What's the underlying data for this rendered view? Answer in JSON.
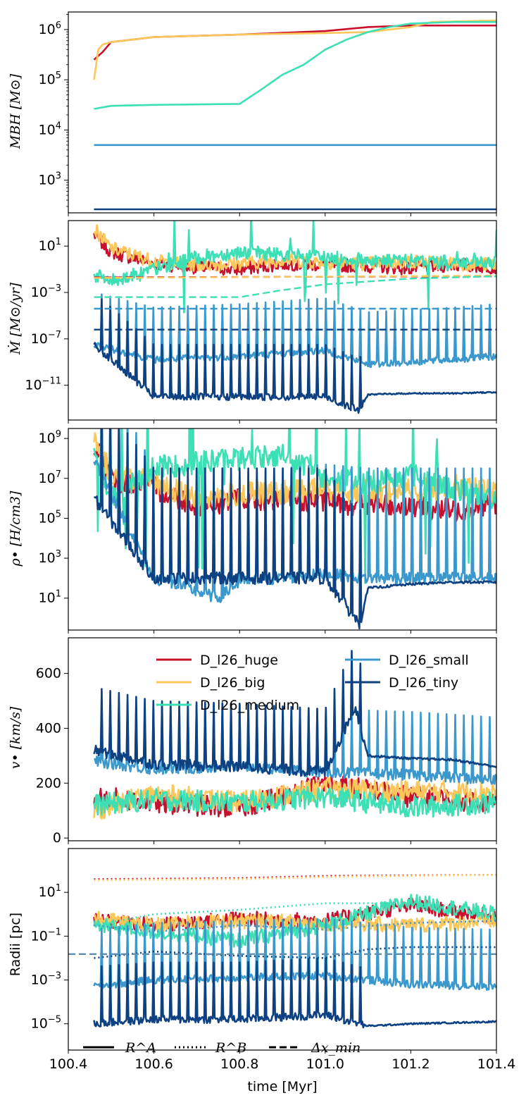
{
  "colors": {
    "huge": "#c8102e",
    "big": "#fcc75a",
    "medium": "#3ddfb4",
    "small": "#3a98cc",
    "tiny": "#0d4182",
    "dxmin_line": "#5f8eb0"
  },
  "chart_data": {
    "type": "line",
    "layout": "5 vertically stacked panels sharing x-axis",
    "xlabel": "time [Myr]",
    "xlim": [
      100.4,
      101.4
    ],
    "xticks": [
      "100.4",
      "100.6",
      "100.8",
      "101.0",
      "101.2",
      "101.4"
    ],
    "x_tick_values": [
      100.4,
      100.6,
      100.8,
      101.0,
      101.2,
      101.4
    ],
    "series_names": [
      "D_l26_huge",
      "D_l26_big",
      "D_l26_medium",
      "D_l26_small",
      "D_l26_tiny"
    ],
    "panels": [
      {
        "ylabel": "M_BH [M_⊙]",
        "ylabel_display": "MBH [M⊙]",
        "yscale": "log",
        "ylim_log10": [
          2.35,
          6.35
        ],
        "yticks": [
          "10^3",
          "10^4",
          "10^5",
          "10^6"
        ],
        "series": [
          {
            "name": "D_l26_huge",
            "style": "solid",
            "x": [
              100.46,
              100.48,
              100.5,
              100.55,
              100.6,
              100.8,
              101.0,
              101.1,
              101.2,
              101.3,
              101.4
            ],
            "log10_y": [
              5.4,
              5.55,
              5.75,
              5.8,
              5.85,
              5.9,
              5.97,
              6.05,
              6.08,
              6.08,
              6.08
            ]
          },
          {
            "name": "D_l26_big",
            "style": "solid",
            "x": [
              100.46,
              100.47,
              100.48,
              100.5,
              100.55,
              100.6,
              100.8,
              101.0,
              101.1,
              101.2,
              101.25,
              101.4
            ],
            "log10_y": [
              5.0,
              5.6,
              5.7,
              5.75,
              5.8,
              5.85,
              5.9,
              5.93,
              5.95,
              6.05,
              6.15,
              6.18
            ]
          },
          {
            "name": "D_l26_medium",
            "style": "solid",
            "x": [
              100.46,
              100.5,
              100.6,
              100.8,
              100.85,
              100.9,
              100.95,
              101.0,
              101.05,
              101.1,
              101.15,
              101.2,
              101.3,
              101.4
            ],
            "log10_y": [
              4.42,
              4.48,
              4.5,
              4.52,
              4.8,
              5.1,
              5.3,
              5.6,
              5.8,
              5.95,
              6.05,
              6.12,
              6.15,
              6.15
            ]
          },
          {
            "name": "D_l26_small",
            "style": "solid",
            "x": [
              100.46,
              101.4
            ],
            "log10_y": [
              3.7,
              3.7
            ]
          },
          {
            "name": "D_l26_tiny",
            "style": "solid",
            "x": [
              100.46,
              101.4
            ],
            "log10_y": [
              2.42,
              2.42
            ]
          }
        ]
      },
      {
        "ylabel": "Ṁ [M_⊙/yr]",
        "ylabel_display": "Ṁ [M⊙/yr]",
        "yscale": "log",
        "ylim_log10": [
          -14,
          3.2
        ],
        "yticks": [
          "10^-11",
          "10^-7",
          "10^-3",
          "10^1"
        ],
        "series": [
          {
            "name": "D_l26_huge",
            "style": "solid",
            "pattern": "noisy",
            "x": [
              100.46,
              100.5,
              100.6,
              100.7,
              100.8,
              100.9,
              101.0,
              101.1,
              101.2,
              101.3,
              101.4
            ],
            "log10_y": [
              2.0,
              0.5,
              -0.5,
              -0.8,
              -1.0,
              -0.5,
              -0.6,
              -0.7,
              -0.9,
              -0.6,
              -0.8
            ]
          },
          {
            "name": "D_l26_big",
            "style": "solid",
            "pattern": "noisy",
            "x": [
              100.46,
              100.5,
              100.6,
              100.7,
              100.8,
              100.9,
              101.0,
              101.1,
              101.2,
              101.3,
              101.4
            ],
            "log10_y": [
              2.5,
              0.8,
              -0.3,
              -0.6,
              -0.5,
              -0.2,
              -0.4,
              -0.5,
              -0.3,
              -0.5,
              -0.6
            ]
          },
          {
            "name": "D_l26_medium",
            "style": "solid",
            "pattern": "noisy-spiky",
            "x": [
              100.46,
              100.5,
              100.6,
              100.7,
              100.8,
              100.9,
              101.0,
              101.1,
              101.2,
              101.3,
              101.4
            ],
            "log10_y": [
              -1.5,
              -2.0,
              -1.0,
              0.0,
              0.5,
              0.3,
              0.0,
              -0.2,
              -0.3,
              -0.4,
              -0.5
            ]
          },
          {
            "name": "D_l26_small",
            "style": "solid",
            "pattern": "spikes",
            "x": [
              100.46,
              100.6,
              100.8,
              101.0,
              101.1,
              101.2,
              101.3,
              101.4
            ],
            "log10_y": [
              -7.5,
              -8.8,
              -8.5,
              -8.0,
              -9.2,
              -9.0,
              -8.8,
              -8.5
            ]
          },
          {
            "name": "D_l26_tiny",
            "style": "solid",
            "pattern": "spikes-then-flat",
            "x": [
              100.46,
              100.6,
              100.8,
              101.0,
              101.08,
              101.1,
              101.2,
              101.3,
              101.4
            ],
            "log10_y": [
              -7.5,
              -12.0,
              -12.0,
              -12.0,
              -13.2,
              -11.8,
              -11.7,
              -11.7,
              -11.6
            ]
          },
          {
            "name": "D_l26_huge",
            "style": "dashed",
            "x": [
              100.46,
              101.4
            ],
            "log10_y": [
              -1.7,
              -1.6
            ]
          },
          {
            "name": "D_l26_big",
            "style": "dashed",
            "x": [
              100.46,
              101.4
            ],
            "log10_y": [
              -1.75,
              -1.55
            ]
          },
          {
            "name": "D_l26_medium",
            "style": "dashed",
            "x": [
              100.46,
              100.8,
              100.9,
              101.0,
              101.2,
              101.4
            ],
            "log10_y": [
              -3.4,
              -3.4,
              -2.8,
              -2.3,
              -1.8,
              -1.6
            ]
          },
          {
            "name": "D_l26_small",
            "style": "dashed",
            "x": [
              100.46,
              101.4
            ],
            "log10_y": [
              -4.4,
              -4.4
            ]
          },
          {
            "name": "D_l26_tiny",
            "style": "dashed",
            "x": [
              100.46,
              101.4
            ],
            "log10_y": [
              -6.2,
              -6.2
            ]
          }
        ]
      },
      {
        "ylabel": "ρ• [H/cm³]",
        "ylabel_display": "ρ• [H/cm3]",
        "yscale": "log",
        "ylim_log10": [
          -0.6,
          9.5
        ],
        "yticks": [
          "10^1",
          "10^3",
          "10^5",
          "10^7",
          "10^9"
        ],
        "series": [
          {
            "name": "D_l26_huge",
            "style": "solid",
            "pattern": "noisy",
            "x": [
              100.46,
              100.5,
              100.6,
              100.7,
              100.8,
              100.9,
              101.0,
              101.1,
              101.2,
              101.3,
              101.4
            ],
            "log10_y": [
              8.8,
              7.0,
              6.5,
              5.7,
              5.9,
              6.0,
              5.8,
              5.7,
              5.6,
              5.4,
              5.8
            ]
          },
          {
            "name": "D_l26_big",
            "style": "solid",
            "pattern": "noisy",
            "x": [
              100.46,
              100.5,
              100.6,
              100.7,
              100.8,
              100.9,
              101.0,
              101.1,
              101.2,
              101.3,
              101.4
            ],
            "log10_y": [
              9.0,
              7.2,
              6.8,
              6.0,
              6.2,
              6.3,
              6.5,
              6.3,
              6.4,
              6.6,
              6.3
            ]
          },
          {
            "name": "D_l26_medium",
            "style": "solid",
            "pattern": "noisy-spiky",
            "x": [
              100.46,
              100.5,
              100.6,
              100.7,
              100.8,
              100.9,
              101.0,
              101.1,
              101.2,
              101.3,
              101.4
            ],
            "log10_y": [
              8.5,
              6.0,
              7.5,
              7.8,
              8.0,
              8.2,
              7.0,
              6.8,
              7.2,
              6.5,
              6.0
            ]
          },
          {
            "name": "D_l26_small",
            "style": "solid",
            "pattern": "spikes",
            "x": [
              100.46,
              100.6,
              100.75,
              100.8,
              101.0,
              101.1,
              101.2,
              101.3,
              101.4
            ],
            "log10_y": [
              8.0,
              2.0,
              1.0,
              1.8,
              2.2,
              2.0,
              2.0,
              2.0,
              2.0
            ]
          },
          {
            "name": "D_l26_tiny",
            "style": "solid",
            "pattern": "spikes-then-flat",
            "x": [
              100.46,
              100.6,
              100.8,
              101.0,
              101.08,
              101.1,
              101.2,
              101.3,
              101.4
            ],
            "log10_y": [
              6.0,
              2.0,
              2.0,
              2.0,
              -0.3,
              1.5,
              1.7,
              1.8,
              1.8
            ]
          }
        ]
      },
      {
        "ylabel": "v• [km/s]",
        "ylabel_display": "v• [km/s]",
        "yscale": "linear",
        "ylim": [
          -10,
          730
        ],
        "yticks": [
          "0",
          "200",
          "400",
          "600"
        ],
        "legend": {
          "placement": "upper",
          "ncol": 2,
          "entries": [
            "D_l26_huge",
            "D_l26_big",
            "D_l26_medium",
            "D_l26_small",
            "D_l26_tiny"
          ]
        },
        "series": [
          {
            "name": "D_l26_huge",
            "style": "solid",
            "pattern": "noisy",
            "x": [
              100.46,
              100.6,
              100.8,
              101.0,
              101.2,
              101.4
            ],
            "y": [
              150,
              130,
              110,
              200,
              150,
              130
            ]
          },
          {
            "name": "D_l26_big",
            "style": "solid",
            "pattern": "noisy",
            "x": [
              100.46,
              100.6,
              100.8,
              101.0,
              101.2,
              101.4
            ],
            "y": [
              100,
              160,
              130,
              180,
              170,
              170
            ]
          },
          {
            "name": "D_l26_medium",
            "style": "solid",
            "pattern": "noisy",
            "x": [
              100.46,
              100.6,
              100.8,
              101.0,
              101.2,
              101.4
            ],
            "y": [
              120,
              140,
              130,
              150,
              110,
              130
            ]
          },
          {
            "name": "D_l26_small",
            "style": "solid",
            "pattern": "spikes",
            "x": [
              100.46,
              100.6,
              100.8,
              101.0,
              101.2,
              101.4
            ],
            "y": [
              280,
              250,
              260,
              240,
              230,
              210
            ]
          },
          {
            "name": "D_l26_tiny",
            "style": "solid",
            "pattern": "spikes-then-decay",
            "x": [
              100.46,
              100.6,
              100.8,
              101.0,
              101.07,
              101.1,
              101.2,
              101.3,
              101.4
            ],
            "y": [
              320,
              270,
              260,
              240,
              480,
              300,
              290,
              285,
              260
            ]
          }
        ]
      },
      {
        "ylabel": "Radii [pc]",
        "ylabel_display": "Radii [pc]",
        "yscale": "log",
        "ylim_log10": [
          -6.2,
          3.0
        ],
        "yticks": [
          "10^-5",
          "10^-3",
          "10^-1",
          "10^1"
        ],
        "legend": {
          "placement": "bottom-left",
          "ncol": 3,
          "entries": [
            "R^A",
            "R^B",
            "Δx_min"
          ]
        },
        "series": [
          {
            "name": "D_l26_huge",
            "style": "solid",
            "pattern": "noisy",
            "x": [
              100.46,
              100.6,
              100.8,
              101.0,
              101.2,
              101.4
            ],
            "log10_y": [
              -0.3,
              -0.5,
              -0.2,
              -0.3,
              0.4,
              -0.1
            ]
          },
          {
            "name": "D_l26_big",
            "style": "solid",
            "pattern": "noisy",
            "x": [
              100.46,
              100.6,
              100.8,
              101.0,
              101.2,
              101.4
            ],
            "log10_y": [
              -0.2,
              -0.5,
              -0.3,
              -0.4,
              -0.5,
              -0.3
            ]
          },
          {
            "name": "D_l26_medium",
            "style": "solid",
            "pattern": "noisy",
            "x": [
              100.46,
              100.6,
              100.8,
              101.0,
              101.2,
              101.4
            ],
            "log10_y": [
              -0.5,
              -0.8,
              -1.2,
              -0.5,
              0.6,
              0.0
            ]
          },
          {
            "name": "D_l26_small",
            "style": "solid",
            "pattern": "spikes",
            "x": [
              100.46,
              100.6,
              100.8,
              101.0,
              101.2,
              101.4
            ],
            "log10_y": [
              -3.3,
              -3.0,
              -2.9,
              -2.8,
              -3.2,
              -3.3
            ]
          },
          {
            "name": "D_l26_tiny",
            "style": "solid",
            "pattern": "spikes-then-flat",
            "x": [
              100.46,
              100.6,
              100.8,
              101.0,
              101.1,
              101.2,
              101.4
            ],
            "log10_y": [
              -5.0,
              -4.8,
              -4.8,
              -4.6,
              -5.1,
              -5.0,
              -4.9
            ]
          },
          {
            "name": "D_l26_huge",
            "style": "dotted",
            "x": [
              100.46,
              100.8,
              101.0,
              101.4
            ],
            "log10_y": [
              1.6,
              1.65,
              1.75,
              1.8
            ]
          },
          {
            "name": "D_l26_big",
            "style": "dotted",
            "x": [
              100.46,
              100.8,
              101.0,
              101.4
            ],
            "log10_y": [
              1.55,
              1.6,
              1.7,
              1.8
            ]
          },
          {
            "name": "D_l26_medium",
            "style": "dotted",
            "x": [
              100.46,
              100.6,
              100.8,
              101.0,
              101.2,
              101.4
            ],
            "log10_y": [
              -0.5,
              0.0,
              0.2,
              0.5,
              0.5,
              0.2
            ]
          },
          {
            "name": "D_l26_small",
            "style": "dotted",
            "x": [
              100.46,
              100.6,
              100.8,
              101.0,
              101.2,
              101.4
            ],
            "log10_y": [
              -0.5,
              -0.8,
              -0.5,
              -0.7,
              -0.4,
              -0.3
            ]
          },
          {
            "name": "D_l26_tiny",
            "style": "dotted",
            "x": [
              100.46,
              100.6,
              100.8,
              101.0,
              101.1,
              101.2,
              101.4
            ],
            "log10_y": [
              -2.0,
              -1.7,
              -1.9,
              -2.0,
              -1.6,
              -1.5,
              -1.5
            ]
          },
          {
            "name": "Δx_min",
            "style": "dashed",
            "x": [
              100.4,
              101.4
            ],
            "log10_y": [
              -1.82,
              -1.82
            ]
          }
        ]
      }
    ]
  }
}
